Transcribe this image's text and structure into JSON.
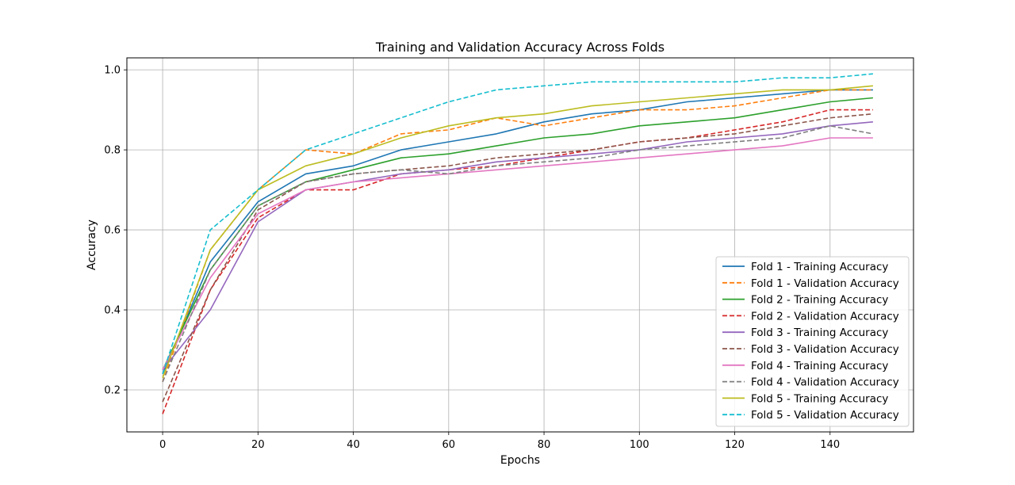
{
  "chart_data": {
    "type": "line",
    "title": "Training and Validation Accuracy Across Folds",
    "xlabel": "Epochs",
    "ylabel": "Accuracy",
    "xlim": [
      -7.5,
      157.5
    ],
    "ylim": [
      0.095,
      1.03
    ],
    "xticks": [
      0,
      20,
      40,
      60,
      80,
      100,
      120,
      140
    ],
    "yticks": [
      0.2,
      0.4,
      0.6,
      0.8,
      1.0
    ],
    "ytick_labels": [
      "0.2",
      "0.4",
      "0.6",
      "0.8",
      "1.0"
    ],
    "grid": true,
    "legend_position": "lower-right",
    "x": [
      0,
      10,
      20,
      30,
      40,
      50,
      60,
      70,
      80,
      90,
      100,
      110,
      120,
      130,
      140,
      149
    ],
    "series": [
      {
        "name": "Fold 1 - Training Accuracy",
        "color": "#1f77b4",
        "dashed": false,
        "values": [
          0.24,
          0.52,
          0.67,
          0.74,
          0.76,
          0.8,
          0.82,
          0.84,
          0.87,
          0.89,
          0.9,
          0.92,
          0.93,
          0.94,
          0.95,
          0.95
        ]
      },
      {
        "name": "Fold 1 - Validation Accuracy",
        "color": "#ff7f0e",
        "dashed": true,
        "values": [
          0.22,
          0.55,
          0.7,
          0.8,
          0.79,
          0.84,
          0.85,
          0.88,
          0.86,
          0.88,
          0.9,
          0.9,
          0.91,
          0.93,
          0.95,
          0.95
        ]
      },
      {
        "name": "Fold 2 - Training Accuracy",
        "color": "#2ca02c",
        "dashed": false,
        "values": [
          0.25,
          0.5,
          0.66,
          0.72,
          0.75,
          0.78,
          0.79,
          0.81,
          0.83,
          0.84,
          0.86,
          0.87,
          0.88,
          0.9,
          0.92,
          0.93
        ]
      },
      {
        "name": "Fold 2 - Validation Accuracy",
        "color": "#d62728",
        "dashed": true,
        "values": [
          0.14,
          0.45,
          0.63,
          0.7,
          0.7,
          0.74,
          0.75,
          0.76,
          0.78,
          0.8,
          0.82,
          0.83,
          0.85,
          0.87,
          0.9,
          0.9
        ]
      },
      {
        "name": "Fold 3 - Training Accuracy",
        "color": "#9467bd",
        "dashed": false,
        "values": [
          0.25,
          0.4,
          0.62,
          0.7,
          0.72,
          0.74,
          0.75,
          0.77,
          0.78,
          0.79,
          0.8,
          0.82,
          0.83,
          0.84,
          0.86,
          0.87
        ]
      },
      {
        "name": "Fold 3 - Validation Accuracy",
        "color": "#8c564b",
        "dashed": true,
        "values": [
          0.17,
          0.45,
          0.65,
          0.72,
          0.74,
          0.75,
          0.76,
          0.78,
          0.79,
          0.8,
          0.82,
          0.83,
          0.84,
          0.86,
          0.88,
          0.89
        ]
      },
      {
        "name": "Fold 4 - Training Accuracy",
        "color": "#e377c2",
        "dashed": false,
        "values": [
          0.25,
          0.48,
          0.64,
          0.7,
          0.72,
          0.73,
          0.74,
          0.75,
          0.76,
          0.77,
          0.78,
          0.79,
          0.8,
          0.81,
          0.83,
          0.83
        ]
      },
      {
        "name": "Fold 4 - Validation Accuracy",
        "color": "#7f7f7f",
        "dashed": true,
        "values": [
          0.22,
          0.5,
          0.66,
          0.72,
          0.74,
          0.75,
          0.74,
          0.76,
          0.77,
          0.78,
          0.8,
          0.81,
          0.82,
          0.83,
          0.86,
          0.84
        ]
      },
      {
        "name": "Fold 5 - Training Accuracy",
        "color": "#bcbd22",
        "dashed": false,
        "values": [
          0.23,
          0.55,
          0.7,
          0.76,
          0.79,
          0.83,
          0.86,
          0.88,
          0.89,
          0.91,
          0.92,
          0.93,
          0.94,
          0.95,
          0.95,
          0.96
        ]
      },
      {
        "name": "Fold 5 - Validation Accuracy",
        "color": "#17becf",
        "dashed": true,
        "values": [
          0.24,
          0.6,
          0.7,
          0.8,
          0.84,
          0.88,
          0.92,
          0.95,
          0.96,
          0.97,
          0.97,
          0.97,
          0.97,
          0.98,
          0.98,
          0.99
        ]
      }
    ]
  }
}
